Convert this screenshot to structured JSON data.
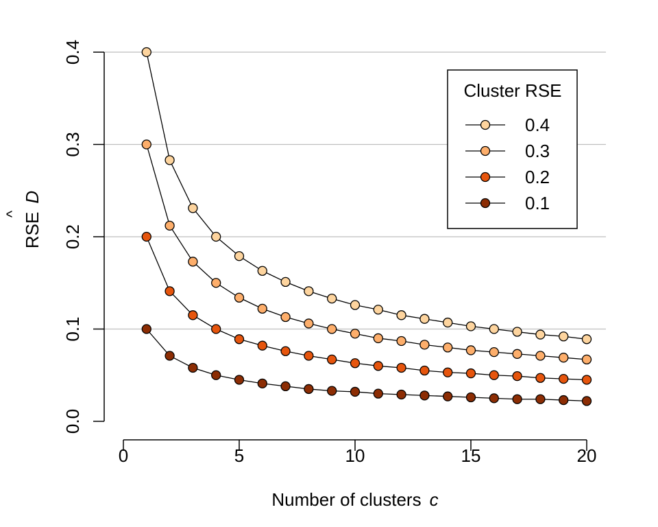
{
  "chart_data": {
    "type": "line",
    "xlabel": "Number of clusters",
    "xlabel_var": "c",
    "ylabel": "RSE",
    "ylabel_var": "D",
    "ylabel_hat": "^",
    "xlim": [
      0,
      20
    ],
    "ylim": [
      0,
      0.4
    ],
    "x_ticks": [
      {
        "value": 0,
        "label": "0"
      },
      {
        "value": 5,
        "label": "5"
      },
      {
        "value": 10,
        "label": "10"
      },
      {
        "value": 15,
        "label": "15"
      },
      {
        "value": 20,
        "label": "20"
      }
    ],
    "y_ticks": [
      {
        "value": 0,
        "label": "0.0"
      },
      {
        "value": 0.1,
        "label": "0.1"
      },
      {
        "value": 0.2,
        "label": "0.2"
      },
      {
        "value": 0.3,
        "label": "0.3"
      },
      {
        "value": 0.4,
        "label": "0.4"
      }
    ],
    "gridlines_y": [
      0.1,
      0.2,
      0.3,
      0.4
    ],
    "grid": "horizontal",
    "legend": {
      "title": "Cluster RSE",
      "placement": "top-right"
    },
    "x": [
      1,
      2,
      3,
      4,
      5,
      6,
      7,
      8,
      9,
      10,
      11,
      12,
      13,
      14,
      15,
      16,
      17,
      18,
      19,
      20
    ],
    "series": [
      {
        "name": "0.4",
        "color": "#fdd49e",
        "values": [
          0.4,
          0.283,
          0.231,
          0.2,
          0.179,
          0.163,
          0.151,
          0.141,
          0.133,
          0.126,
          0.121,
          0.115,
          0.111,
          0.107,
          0.103,
          0.1,
          0.097,
          0.094,
          0.092,
          0.089
        ]
      },
      {
        "name": "0.3",
        "color": "#fdae6b",
        "values": [
          0.3,
          0.212,
          0.173,
          0.15,
          0.134,
          0.122,
          0.113,
          0.106,
          0.1,
          0.095,
          0.09,
          0.087,
          0.083,
          0.08,
          0.077,
          0.075,
          0.073,
          0.071,
          0.069,
          0.067
        ]
      },
      {
        "name": "0.2",
        "color": "#e6550d",
        "values": [
          0.2,
          0.141,
          0.115,
          0.1,
          0.089,
          0.082,
          0.076,
          0.071,
          0.067,
          0.063,
          0.06,
          0.058,
          0.055,
          0.053,
          0.052,
          0.05,
          0.049,
          0.047,
          0.046,
          0.045
        ]
      },
      {
        "name": "0.1",
        "color": "#8c2d04",
        "values": [
          0.1,
          0.071,
          0.058,
          0.05,
          0.045,
          0.041,
          0.038,
          0.035,
          0.033,
          0.032,
          0.03,
          0.029,
          0.028,
          0.027,
          0.026,
          0.025,
          0.024,
          0.024,
          0.023,
          0.022
        ]
      }
    ]
  }
}
